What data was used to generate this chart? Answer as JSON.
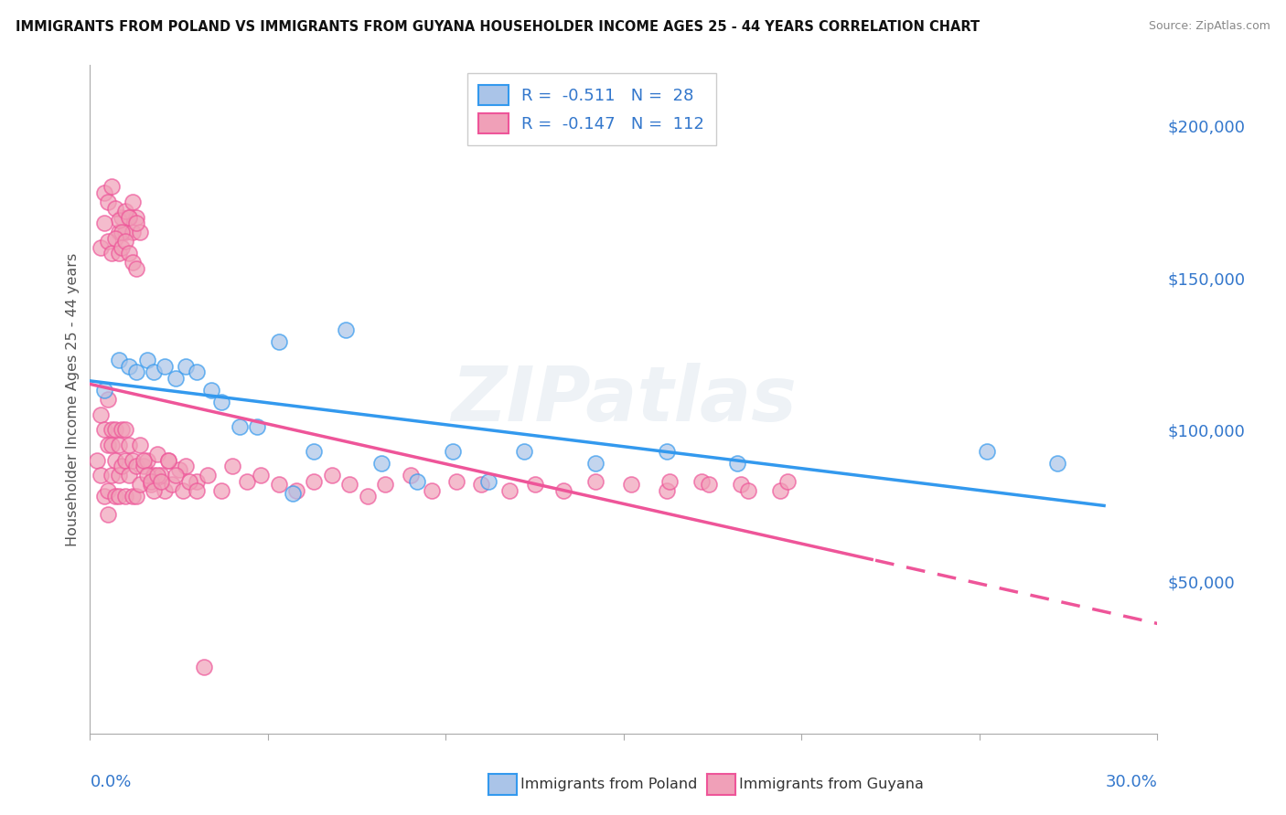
{
  "title": "IMMIGRANTS FROM POLAND VS IMMIGRANTS FROM GUYANA HOUSEHOLDER INCOME AGES 25 - 44 YEARS CORRELATION CHART",
  "source": "Source: ZipAtlas.com",
  "ylabel": "Householder Income Ages 25 - 44 years",
  "legend_poland_label": "Immigrants from Poland",
  "legend_guyana_label": "Immigrants from Guyana",
  "poland_color": "#aac4e8",
  "guyana_color": "#f0a0b8",
  "poland_line_color": "#3399ee",
  "guyana_line_color": "#ee5599",
  "xlim": [
    0.0,
    0.3
  ],
  "ylim": [
    0,
    220000
  ],
  "poland_x": [
    0.004,
    0.008,
    0.011,
    0.013,
    0.016,
    0.018,
    0.021,
    0.024,
    0.027,
    0.03,
    0.034,
    0.037,
    0.042,
    0.047,
    0.053,
    0.057,
    0.063,
    0.072,
    0.082,
    0.092,
    0.102,
    0.112,
    0.122,
    0.142,
    0.162,
    0.182,
    0.252,
    0.272
  ],
  "poland_y": [
    113000,
    123000,
    121000,
    119000,
    123000,
    119000,
    121000,
    117000,
    121000,
    119000,
    113000,
    109000,
    101000,
    101000,
    129000,
    79000,
    93000,
    133000,
    89000,
    83000,
    93000,
    83000,
    93000,
    89000,
    93000,
    89000,
    93000,
    89000
  ],
  "guyana_x": [
    0.002,
    0.003,
    0.003,
    0.004,
    0.004,
    0.005,
    0.005,
    0.005,
    0.005,
    0.006,
    0.006,
    0.006,
    0.007,
    0.007,
    0.007,
    0.008,
    0.008,
    0.008,
    0.009,
    0.009,
    0.01,
    0.01,
    0.01,
    0.011,
    0.011,
    0.012,
    0.012,
    0.013,
    0.013,
    0.014,
    0.014,
    0.015,
    0.016,
    0.017,
    0.018,
    0.019,
    0.02,
    0.021,
    0.022,
    0.023,
    0.025,
    0.027,
    0.03,
    0.033,
    0.037,
    0.04,
    0.044,
    0.048,
    0.053,
    0.058,
    0.063,
    0.068,
    0.073,
    0.078,
    0.083,
    0.09,
    0.096,
    0.103,
    0.11,
    0.118,
    0.125,
    0.133,
    0.142,
    0.152,
    0.162,
    0.172,
    0.183,
    0.194,
    0.163,
    0.174,
    0.185,
    0.196,
    0.008,
    0.009,
    0.01,
    0.011,
    0.012,
    0.013,
    0.014,
    0.004,
    0.005,
    0.006,
    0.007,
    0.008,
    0.009,
    0.01,
    0.011,
    0.012,
    0.013,
    0.003,
    0.004,
    0.005,
    0.006,
    0.007,
    0.008,
    0.009,
    0.01,
    0.011,
    0.012,
    0.013,
    0.015,
    0.016,
    0.017,
    0.018,
    0.019,
    0.02,
    0.022,
    0.024,
    0.026,
    0.028,
    0.03,
    0.032,
    0.035,
    0.038
  ],
  "guyana_y": [
    90000,
    105000,
    85000,
    100000,
    78000,
    95000,
    110000,
    80000,
    72000,
    100000,
    85000,
    95000,
    90000,
    100000,
    78000,
    95000,
    85000,
    78000,
    100000,
    88000,
    90000,
    78000,
    100000,
    85000,
    95000,
    90000,
    78000,
    88000,
    78000,
    95000,
    82000,
    88000,
    90000,
    82000,
    85000,
    92000,
    85000,
    80000,
    90000,
    82000,
    87000,
    88000,
    83000,
    85000,
    80000,
    88000,
    83000,
    85000,
    82000,
    80000,
    83000,
    85000,
    82000,
    78000,
    82000,
    85000,
    80000,
    83000,
    82000,
    80000,
    82000,
    80000,
    83000,
    82000,
    80000,
    83000,
    82000,
    80000,
    83000,
    82000,
    80000,
    83000,
    165000,
    170000,
    165000,
    170000,
    165000,
    170000,
    165000,
    178000,
    175000,
    180000,
    173000,
    169000,
    165000,
    172000,
    170000,
    175000,
    168000,
    160000,
    168000,
    162000,
    158000,
    163000,
    158000,
    160000,
    162000,
    158000,
    155000,
    153000,
    90000,
    85000,
    83000,
    80000,
    85000,
    83000,
    90000,
    85000,
    80000,
    83000,
    80000,
    22000
  ]
}
